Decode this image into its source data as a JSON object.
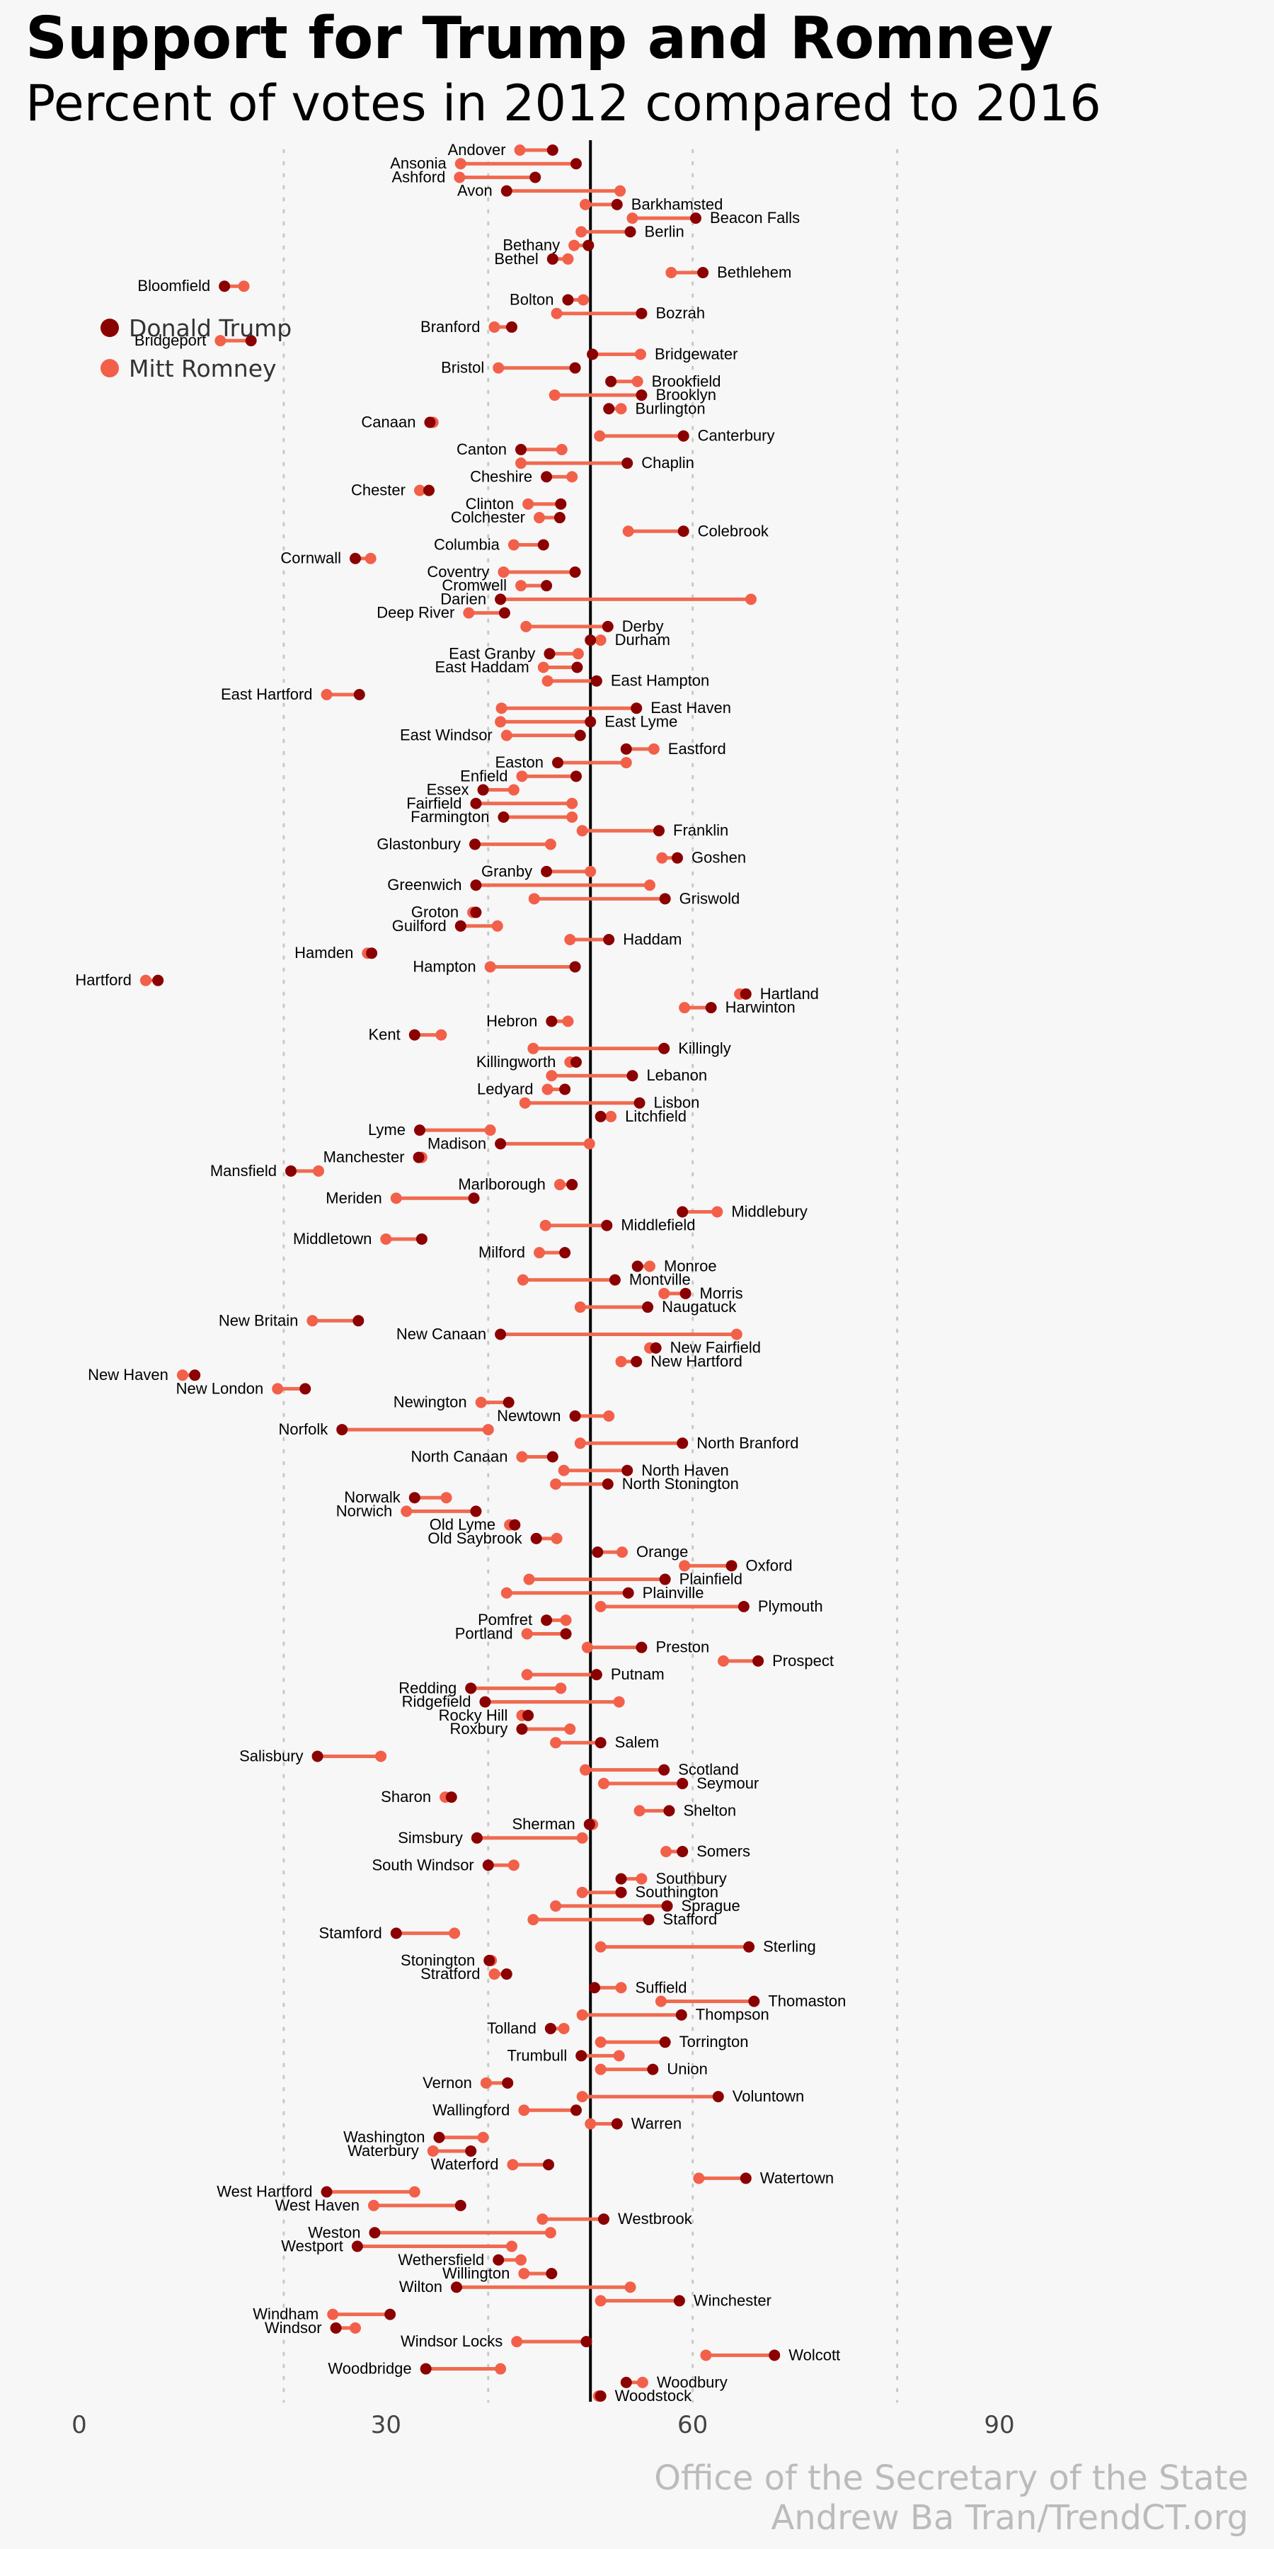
{
  "chart_data": {
    "type": "dumbbell",
    "title": "Support for Trump and Romney",
    "subtitle": "Percent of votes in 2012 compared to 2016",
    "xlim": [
      0,
      90
    ],
    "xticks": [
      0,
      30,
      60,
      90
    ],
    "grid_lines": [
      20,
      40,
      60,
      80
    ],
    "reference_line": 50,
    "grid": "vertical dotted",
    "legend_position": "left",
    "series": [
      {
        "name": "Donald Trump",
        "color": "#8b0000"
      },
      {
        "name": "Mitt Romney",
        "color": "#f2604a"
      }
    ],
    "caption": [
      "Office of the Secretary of the State",
      "Andrew Ba Tran/TrendCT.org"
    ],
    "towns": [
      [
        "Andover",
        46.3,
        43.1
      ],
      [
        "Ansonia",
        48.6,
        37.3
      ],
      [
        "Ashford",
        44.6,
        37.2
      ],
      [
        "Avon",
        41.8,
        52.9
      ],
      [
        "Barkhamsted",
        52.6,
        49.5
      ],
      [
        "Beacon Falls",
        60.3,
        54.1
      ],
      [
        "Berlin",
        53.9,
        49.1
      ],
      [
        "Bethany",
        49.8,
        48.4
      ],
      [
        "Bethel",
        46.3,
        47.8
      ],
      [
        "Bethlehem",
        61.0,
        57.9
      ],
      [
        "Bloomfield",
        14.2,
        16.1
      ],
      [
        "Bolton",
        47.8,
        49.3
      ],
      [
        "Bozrah",
        55.0,
        46.7
      ],
      [
        "Branford",
        42.3,
        40.6
      ],
      [
        "Bridgeport",
        16.8,
        13.8
      ],
      [
        "Bridgewater",
        50.2,
        54.9
      ],
      [
        "Bristol",
        48.5,
        41.0
      ],
      [
        "Brookfield",
        52.0,
        54.6
      ],
      [
        "Brooklyn",
        55.0,
        46.5
      ],
      [
        "Burlington",
        51.8,
        53.0
      ],
      [
        "Canaan",
        34.3,
        34.6
      ],
      [
        "Canterbury",
        59.1,
        50.9
      ],
      [
        "Canton",
        43.2,
        47.2
      ],
      [
        "Chaplin",
        53.6,
        43.2
      ],
      [
        "Cheshire",
        45.7,
        48.2
      ],
      [
        "Chester",
        34.2,
        33.3
      ],
      [
        "Clinton",
        47.1,
        43.9
      ],
      [
        "Colchester",
        47.0,
        45.0
      ],
      [
        "Colebrook",
        59.1,
        53.7
      ],
      [
        "Columbia",
        45.4,
        42.5
      ],
      [
        "Cornwall",
        27.0,
        28.5
      ],
      [
        "Coventry",
        48.5,
        41.5
      ],
      [
        "Cromwell",
        45.7,
        43.2
      ],
      [
        "Darien",
        41.2,
        65.7
      ],
      [
        "Deep River",
        41.6,
        38.1
      ],
      [
        "Derby",
        51.7,
        43.7
      ],
      [
        "Durham",
        50.0,
        51.0
      ],
      [
        "East Granby",
        46.0,
        48.8
      ],
      [
        "East Haddam",
        48.7,
        45.4
      ],
      [
        "East Hampton",
        50.6,
        45.8
      ],
      [
        "East Hartford",
        27.4,
        24.2
      ],
      [
        "East Haven",
        54.5,
        41.3
      ],
      [
        "East Lyme",
        50.0,
        41.2
      ],
      [
        "East Windsor",
        49.0,
        41.8
      ],
      [
        "Eastford",
        53.5,
        56.2
      ],
      [
        "Easton",
        46.8,
        53.5
      ],
      [
        "Enfield",
        48.6,
        43.3
      ],
      [
        "Essex",
        39.5,
        42.5
      ],
      [
        "Fairfield",
        38.8,
        48.2
      ],
      [
        "Farmington",
        41.5,
        48.2
      ],
      [
        "Franklin",
        56.7,
        49.2
      ],
      [
        "Glastonbury",
        38.7,
        46.1
      ],
      [
        "Goshen",
        58.5,
        57.0
      ],
      [
        "Granby",
        45.7,
        50.0
      ],
      [
        "Greenwich",
        38.8,
        55.8
      ],
      [
        "Griswold",
        57.3,
        44.5
      ],
      [
        "Groton",
        38.8,
        38.5
      ],
      [
        "Guilford",
        37.3,
        40.9
      ],
      [
        "Haddam",
        51.8,
        48.0
      ],
      [
        "Hamden",
        28.6,
        28.2
      ],
      [
        "Hampton",
        48.5,
        40.2
      ],
      [
        "Hartford",
        7.7,
        6.5
      ],
      [
        "Hartland",
        65.2,
        64.6
      ],
      [
        "Harwinton",
        61.8,
        59.2
      ],
      [
        "Hebron",
        46.2,
        47.8
      ],
      [
        "Kent",
        32.8,
        35.4
      ],
      [
        "Killingly",
        57.2,
        44.4
      ],
      [
        "Killingworth",
        48.6,
        48.0
      ],
      [
        "Lebanon",
        54.1,
        46.2
      ],
      [
        "Ledyard",
        47.5,
        45.8
      ],
      [
        "Lisbon",
        54.8,
        43.6
      ],
      [
        "Litchfield",
        51.0,
        52.0
      ],
      [
        "Lyme",
        33.3,
        40.2
      ],
      [
        "Madison",
        41.2,
        49.9
      ],
      [
        "Manchester",
        33.2,
        33.5
      ],
      [
        "Mansfield",
        20.7,
        23.4
      ],
      [
        "Marlborough",
        48.2,
        47.0
      ],
      [
        "Meriden",
        38.6,
        31.0
      ],
      [
        "Middlebury",
        59.0,
        62.4
      ],
      [
        "Middlefield",
        51.6,
        45.6
      ],
      [
        "Middletown",
        33.5,
        30.0
      ],
      [
        "Milford",
        47.5,
        45.0
      ],
      [
        "Monroe",
        54.6,
        55.8
      ],
      [
        "Montville",
        52.4,
        43.4
      ],
      [
        "Morris",
        59.3,
        57.2
      ],
      [
        "Naugatuck",
        55.6,
        49.0
      ],
      [
        "New Britain",
        27.3,
        22.8
      ],
      [
        "New Canaan",
        41.2,
        64.3
      ],
      [
        "New Fairfield",
        56.4,
        55.8
      ],
      [
        "New Hartford",
        54.5,
        53.0
      ],
      [
        "New Haven",
        11.3,
        10.1
      ],
      [
        "New London",
        22.1,
        19.4
      ],
      [
        "Newington",
        42.0,
        39.3
      ],
      [
        "Newtown",
        48.5,
        51.8
      ],
      [
        "Norfolk",
        25.7,
        40.0
      ],
      [
        "North Branford",
        59.0,
        49.0
      ],
      [
        "North Canaan",
        46.3,
        43.3
      ],
      [
        "North Haven",
        53.6,
        47.4
      ],
      [
        "North Stonington",
        51.7,
        46.6
      ],
      [
        "Norwalk",
        32.8,
        35.9
      ],
      [
        "Norwich",
        38.8,
        32.0
      ],
      [
        "Old Lyme",
        42.6,
        42.1
      ],
      [
        "Old Saybrook",
        44.7,
        46.7
      ],
      [
        "Orange",
        50.7,
        53.1
      ],
      [
        "Oxford",
        63.8,
        59.2
      ],
      [
        "Plainfield",
        57.3,
        44.0
      ],
      [
        "Plainville",
        53.7,
        41.8
      ],
      [
        "Plymouth",
        65.0,
        51.0
      ],
      [
        "Pomfret",
        45.7,
        47.6
      ],
      [
        "Portland",
        47.6,
        43.8
      ],
      [
        "Preston",
        55.0,
        49.7
      ],
      [
        "Prospect",
        66.4,
        63.0
      ],
      [
        "Putnam",
        50.6,
        43.8
      ],
      [
        "Redding",
        38.3,
        47.1
      ],
      [
        "Ridgefield",
        39.7,
        52.8
      ],
      [
        "Rocky Hill",
        43.9,
        43.3
      ],
      [
        "Roxbury",
        43.3,
        48.0
      ],
      [
        "Salem",
        51.0,
        46.6
      ],
      [
        "Salisbury",
        23.3,
        29.5
      ],
      [
        "Scotland",
        57.2,
        49.5
      ],
      [
        "Seymour",
        59.0,
        51.3
      ],
      [
        "Sharon",
        36.4,
        35.8
      ],
      [
        "Shelton",
        57.7,
        54.8
      ],
      [
        "Sherman",
        49.9,
        50.2
      ],
      [
        "Simsbury",
        38.9,
        49.2
      ],
      [
        "Somers",
        59.0,
        57.4
      ],
      [
        "South Windsor",
        40.0,
        42.5
      ],
      [
        "Southbury",
        53.0,
        55.0
      ],
      [
        "Southington",
        53.0,
        49.2
      ],
      [
        "Sprague",
        57.5,
        46.6
      ],
      [
        "Stafford",
        55.7,
        44.4
      ],
      [
        "Stamford",
        31.0,
        36.7
      ],
      [
        "Sterling",
        65.5,
        51.0
      ],
      [
        "Stonington",
        40.1,
        40.3
      ],
      [
        "Stratford",
        41.8,
        40.6
      ],
      [
        "Suffield",
        50.4,
        53.0
      ],
      [
        "Thomaston",
        66.0,
        56.9
      ],
      [
        "Thompson",
        58.9,
        49.2
      ],
      [
        "Tolland",
        46.1,
        47.4
      ],
      [
        "Torrington",
        57.3,
        51.0
      ],
      [
        "Trumbull",
        49.1,
        52.8
      ],
      [
        "Union",
        56.1,
        51.0
      ],
      [
        "Vernon",
        41.9,
        39.8
      ],
      [
        "Voluntown",
        62.5,
        49.2
      ],
      [
        "Wallingford",
        48.6,
        43.5
      ],
      [
        "Warren",
        52.6,
        50.0
      ],
      [
        "Washington",
        35.2,
        39.5
      ],
      [
        "Waterbury",
        38.3,
        34.6
      ],
      [
        "Waterford",
        45.9,
        42.4
      ],
      [
        "Watertown",
        65.2,
        60.6
      ],
      [
        "West Hartford",
        24.2,
        32.8
      ],
      [
        "West Haven",
        37.3,
        28.8
      ],
      [
        "Westbrook",
        51.3,
        45.3
      ],
      [
        "Weston",
        28.9,
        46.1
      ],
      [
        "Westport",
        27.2,
        42.3
      ],
      [
        "Wethersfield",
        41.0,
        43.2
      ],
      [
        "Willington",
        46.2,
        43.5
      ],
      [
        "Wilton",
        36.9,
        53.9
      ],
      [
        "Winchester",
        58.7,
        51.0
      ],
      [
        "Windham",
        30.4,
        24.8
      ],
      [
        "Windsor",
        25.1,
        27.0
      ],
      [
        "Windsor Locks",
        49.6,
        42.8
      ],
      [
        "Wolcott",
        68.0,
        61.3
      ],
      [
        "Woodbridge",
        33.9,
        41.2
      ],
      [
        "Woodbury",
        53.5,
        55.1
      ],
      [
        "Woodstock",
        51.0,
        50.8
      ]
    ]
  }
}
